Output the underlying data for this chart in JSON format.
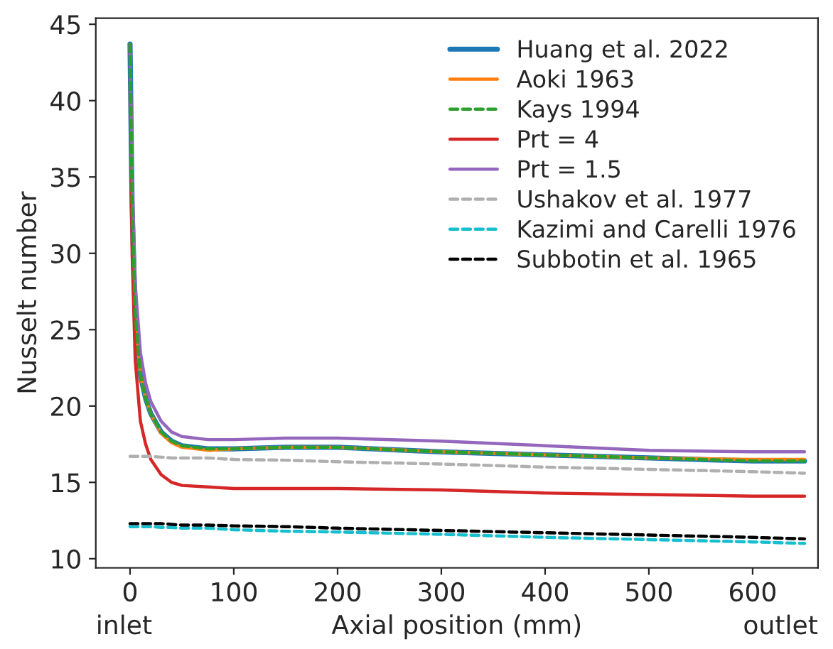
{
  "chart_data": {
    "type": "line",
    "xlabel": "Axial position (mm)",
    "ylabel": "Nusselt number",
    "xlim": [
      -33,
      663
    ],
    "ylim": [
      9.4,
      45.4
    ],
    "xticks": [
      0,
      100,
      200,
      300,
      400,
      500,
      600
    ],
    "yticks": [
      10,
      15,
      20,
      25,
      30,
      35,
      40,
      45
    ],
    "grid": false,
    "legend": "top right",
    "annotations": [
      "inlet",
      "outlet"
    ],
    "x": [
      0,
      2,
      5,
      10,
      15,
      20,
      30,
      40,
      50,
      75,
      100,
      150,
      200,
      300,
      400,
      500,
      600,
      650
    ],
    "series": [
      {
        "name": "Huang et al. 2022",
        "color": "#1f77b4",
        "line_style": "solid",
        "values": [
          43.7,
          33,
          26,
          22,
          20.5,
          19.5,
          18.3,
          17.7,
          17.4,
          17.2,
          17.2,
          17.3,
          17.3,
          17.0,
          16.8,
          16.6,
          16.4,
          16.4
        ]
      },
      {
        "name": "Aoki 1963",
        "color": "#ff7f0e",
        "line_style": "solid",
        "values": [
          43.7,
          33,
          26,
          22,
          20.5,
          19.5,
          18.2,
          17.6,
          17.3,
          17.1,
          17.2,
          17.3,
          17.3,
          17.0,
          16.8,
          16.6,
          16.5,
          16.5
        ]
      },
      {
        "name": "Kays 1994",
        "color": "#2ca02c",
        "line_style": "dashed",
        "values": [
          43.7,
          33,
          26,
          22,
          20.5,
          19.5,
          18.3,
          17.7,
          17.4,
          17.2,
          17.2,
          17.3,
          17.3,
          17.0,
          16.8,
          16.6,
          16.4,
          16.4
        ]
      },
      {
        "name": "Prt = 4",
        "color": "#d62728",
        "line_style": "solid",
        "values": [
          43.7,
          30,
          23,
          19,
          17.5,
          16.5,
          15.5,
          15.0,
          14.8,
          14.7,
          14.6,
          14.6,
          14.6,
          14.5,
          14.3,
          14.2,
          14.1,
          14.1
        ]
      },
      {
        "name": "Prt = 1.5",
        "color": "#9467bd",
        "line_style": "solid",
        "values": [
          43.7,
          35,
          28,
          23.5,
          21.5,
          20.3,
          19,
          18.3,
          18.0,
          17.8,
          17.8,
          17.9,
          17.9,
          17.7,
          17.4,
          17.1,
          17.0,
          17.0
        ]
      },
      {
        "name": "Ushakov et al. 1977",
        "color": "#b0b0b0",
        "line_style": "dashed",
        "values": [
          16.7,
          16.7,
          16.7,
          16.7,
          16.7,
          16.7,
          16.65,
          16.6,
          16.6,
          16.6,
          16.5,
          16.45,
          16.35,
          16.2,
          16.0,
          15.85,
          15.7,
          15.6
        ]
      },
      {
        "name": "Kazimi and Carelli 1976",
        "color": "#17becf",
        "line_style": "dashed",
        "values": [
          12.1,
          12.1,
          12.1,
          12.1,
          12.1,
          12.1,
          12.05,
          12.05,
          12.0,
          12.0,
          11.9,
          11.8,
          11.75,
          11.6,
          11.4,
          11.25,
          11.1,
          11.0
        ]
      },
      {
        "name": "Subbotin et al. 1965",
        "color": "#000000",
        "line_style": "dashed",
        "values": [
          12.3,
          12.3,
          12.3,
          12.3,
          12.3,
          12.3,
          12.3,
          12.25,
          12.2,
          12.2,
          12.15,
          12.1,
          12.0,
          11.85,
          11.7,
          11.55,
          11.4,
          11.3
        ]
      }
    ]
  }
}
